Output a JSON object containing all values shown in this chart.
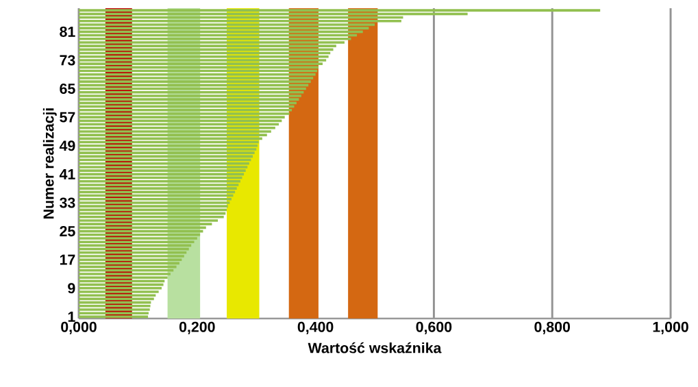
{
  "chart_data": {
    "type": "bar",
    "orientation": "horizontal",
    "xlabel": "Wartość wskaźnika",
    "ylabel": "Numer realizacji",
    "categories": [
      null,
      null,
      null,
      null,
      null,
      null,
      "81",
      null,
      null,
      null,
      null,
      null,
      null,
      null,
      "73",
      null,
      null,
      null,
      null,
      null,
      null,
      null,
      "65",
      null,
      null,
      null,
      null,
      null,
      null,
      null,
      "57",
      null,
      null,
      null,
      null,
      null,
      null,
      null,
      "49",
      null,
      null,
      null,
      null,
      null,
      null,
      null,
      "41",
      null,
      null,
      null,
      null,
      null,
      null,
      null,
      "33",
      null,
      null,
      null,
      null,
      null,
      null,
      null,
      "25",
      null,
      null,
      null,
      null,
      null,
      null,
      null,
      "17",
      null,
      null,
      null,
      null,
      null,
      null,
      null,
      "9",
      null,
      null,
      null,
      null,
      null,
      null,
      null,
      "1"
    ],
    "values": [
      0.881,
      0.657,
      0.548,
      0.545,
      0.5,
      0.49,
      0.48,
      0.47,
      0.46,
      0.449,
      0.435,
      0.43,
      0.425,
      0.422,
      0.418,
      0.412,
      0.405,
      0.403,
      0.4,
      0.396,
      0.392,
      0.388,
      0.384,
      0.38,
      0.376,
      0.372,
      0.368,
      0.364,
      0.36,
      0.356,
      0.348,
      0.343,
      0.338,
      0.332,
      0.325,
      0.318,
      0.31,
      0.304,
      0.302,
      0.3,
      0.297,
      0.294,
      0.291,
      0.288,
      0.285,
      0.282,
      0.279,
      0.276,
      0.273,
      0.27,
      0.267,
      0.264,
      0.261,
      0.258,
      0.255,
      0.252,
      0.25,
      0.248,
      0.245,
      0.235,
      0.225,
      0.215,
      0.21,
      0.205,
      0.2,
      0.195,
      0.19,
      0.186,
      0.182,
      0.178,
      0.174,
      0.17,
      0.165,
      0.16,
      0.155,
      0.15,
      0.145,
      0.143,
      0.14,
      0.135,
      0.13,
      0.127,
      0.122,
      0.121,
      0.12,
      0.118,
      0.117
    ],
    "color": "#92c050",
    "xlim": [
      0,
      1
    ],
    "xticks": [
      {
        "value": 0,
        "label": "0,000"
      },
      {
        "value": 0.2,
        "label": "0,200"
      },
      {
        "value": 0.4,
        "label": "0,400"
      },
      {
        "value": 0.6,
        "label": "0,600"
      },
      {
        "value": 0.8,
        "label": "0,800"
      },
      {
        "value": 1,
        "label": "1,000"
      }
    ],
    "grid": "x",
    "bands": [
      {
        "axis": "x",
        "from": 0.045,
        "to": 0.09,
        "color": "#c00000"
      },
      {
        "axis": "x",
        "from": 0.15,
        "to": 0.205,
        "color": "#b8e0a0"
      },
      {
        "axis": "x",
        "from": 0.25,
        "to": 0.305,
        "color": "#e8e800"
      },
      {
        "axis": "x",
        "from": 0.355,
        "to": 0.405,
        "color": "#d46812"
      },
      {
        "axis": "x",
        "from": 0.455,
        "to": 0.505,
        "color": "#d46812"
      }
    ]
  }
}
